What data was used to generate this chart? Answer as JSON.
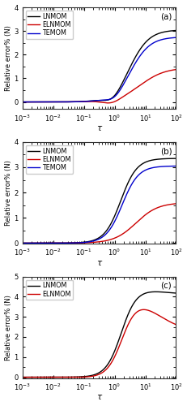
{
  "panels": [
    {
      "label": "(a)",
      "ylim": [
        -0.3,
        4.0
      ],
      "yticks": [
        0,
        1,
        2,
        3,
        4
      ],
      "has_temom": true
    },
    {
      "label": "(b)",
      "ylim": [
        -0.02,
        4.0
      ],
      "yticks": [
        0,
        1,
        2,
        3,
        4
      ],
      "has_temom": true
    },
    {
      "label": "(c)",
      "ylim": [
        -0.05,
        5.0
      ],
      "yticks": [
        0,
        1,
        2,
        3,
        4,
        5
      ],
      "has_temom": false
    }
  ],
  "xlabel": "τ",
  "ylabel": "Relative error% (N)",
  "bg_color": "#ffffff",
  "linewidth": 1.0,
  "lnmom_color": "#000000",
  "elnmom_color": "#cc0000",
  "temom_color": "#0000cc"
}
